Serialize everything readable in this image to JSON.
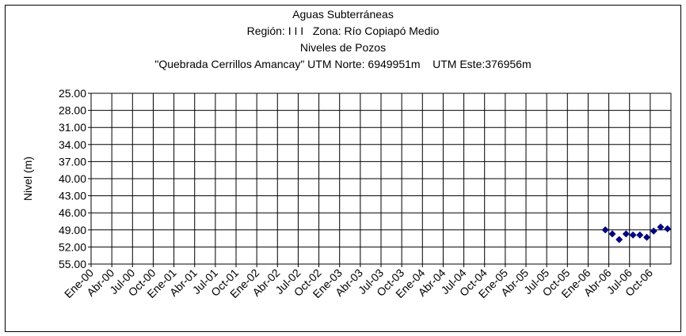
{
  "chart_data": {
    "type": "scatter",
    "title": "Aguas Subterráneas",
    "subtitle": [
      "Región: I I I   Zona: Río Copiapó Medio",
      "Niveles de Pozos",
      "\"Quebrada Cerrillos Amancay\" UTM Norte: 6949951m    UTM Este:376956m"
    ],
    "y_label": "Nivel (m)",
    "categories": [
      "Ene-00",
      null,
      null,
      "Abr-00",
      null,
      null,
      "Jul-00",
      null,
      null,
      "Oct-00",
      null,
      null,
      "Ene-01",
      null,
      null,
      "Abr-01",
      null,
      null,
      "Jul-01",
      null,
      null,
      "Oct-01",
      null,
      null,
      "Ene-02",
      null,
      null,
      "Abr-02",
      null,
      null,
      "Jul-02",
      null,
      null,
      "Oct-02",
      null,
      null,
      "Ene-03",
      null,
      null,
      "Abr-03",
      null,
      null,
      "Jul-03",
      null,
      null,
      "Oct-03",
      null,
      null,
      "Ene-04",
      null,
      null,
      "Abr-04",
      null,
      null,
      "Jul-04",
      null,
      null,
      "Oct-04",
      null,
      null,
      "Ene-05",
      null,
      null,
      "Abr-05",
      null,
      null,
      "Jul-05",
      null,
      null,
      "Oct-05",
      null,
      null,
      "Ene-06",
      null,
      null,
      "Abr-06",
      null,
      null,
      "Jul-06",
      null,
      null,
      "Oct-06",
      null,
      null
    ],
    "values": [
      null,
      null,
      null,
      null,
      null,
      null,
      null,
      null,
      null,
      null,
      null,
      null,
      null,
      null,
      null,
      null,
      null,
      null,
      null,
      null,
      null,
      null,
      null,
      null,
      null,
      null,
      null,
      null,
      null,
      null,
      null,
      null,
      null,
      null,
      null,
      null,
      null,
      null,
      null,
      null,
      null,
      null,
      null,
      null,
      null,
      null,
      null,
      null,
      null,
      null,
      null,
      null,
      null,
      null,
      null,
      null,
      null,
      null,
      null,
      null,
      null,
      null,
      null,
      null,
      null,
      null,
      null,
      null,
      null,
      null,
      null,
      null,
      null,
      null,
      49.0,
      49.7,
      50.7,
      49.7,
      49.9,
      49.9,
      50.3,
      49.2,
      48.5,
      48.8
    ],
    "color": "#000080",
    "ylim": [
      25,
      55
    ],
    "y_inverted": true,
    "yticks": [
      {
        "value": 25,
        "label": "25.00"
      },
      {
        "value": 28,
        "label": "28.00"
      },
      {
        "value": 31,
        "label": "31.00"
      },
      {
        "value": 34,
        "label": "34.00"
      },
      {
        "value": 37,
        "label": "37.00"
      },
      {
        "value": 40,
        "label": "40.00"
      },
      {
        "value": 43,
        "label": "43.00"
      },
      {
        "value": 46,
        "label": "46.00"
      },
      {
        "value": 49,
        "label": "49.00"
      },
      {
        "value": 52,
        "label": "52.00"
      },
      {
        "value": 55,
        "label": "55.00"
      }
    ],
    "grid": true
  }
}
